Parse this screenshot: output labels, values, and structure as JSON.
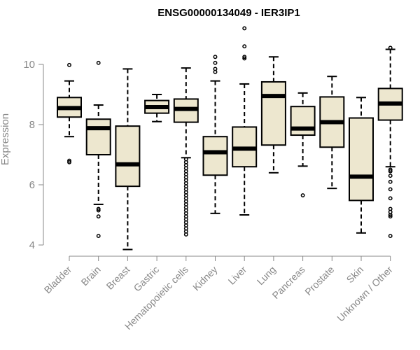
{
  "chart_data": {
    "type": "boxplot",
    "title": "ENSG00000134049 - IER3IP1",
    "xlabel": "",
    "ylabel": "Expression",
    "ylim": [
      3.8,
      11.3
    ],
    "yticks": [
      4,
      6,
      8,
      10
    ],
    "colors": {
      "box_fill": "#ede7cf",
      "box_stroke": "#000000",
      "axis": "#888888"
    },
    "categories": [
      "Bladder",
      "Brain",
      "Breast",
      "Gastric",
      "Hematopoietic cells",
      "Kidney",
      "Liver",
      "Lung",
      "Pancreas",
      "Prostate",
      "Skin",
      "Unknown / Other"
    ],
    "boxes": [
      {
        "label": "Bladder",
        "q1": 8.25,
        "median": 8.55,
        "q3": 8.9,
        "whisker_low": 7.6,
        "whisker_high": 9.45,
        "outliers": [
          6.75,
          6.8,
          9.98
        ]
      },
      {
        "label": "Brain",
        "q1": 7.0,
        "median": 7.88,
        "q3": 8.18,
        "whisker_low": 5.35,
        "whisker_high": 8.65,
        "outliers": [
          5.2,
          5.15,
          4.95,
          4.3,
          10.05
        ]
      },
      {
        "label": "Breast",
        "q1": 5.95,
        "median": 6.68,
        "q3": 7.95,
        "whisker_low": 3.85,
        "whisker_high": 9.85,
        "outliers": []
      },
      {
        "label": "Gastric",
        "q1": 8.38,
        "median": 8.58,
        "q3": 8.8,
        "whisker_low": 8.1,
        "whisker_high": 9.0,
        "outliers": []
      },
      {
        "label": "Hematopoietic cells",
        "q1": 8.08,
        "median": 8.52,
        "q3": 8.85,
        "whisker_low": 6.9,
        "whisker_high": 9.88,
        "outliers": [
          6.85,
          6.75,
          6.65,
          6.55,
          6.45,
          6.35,
          6.25,
          6.15,
          6.05,
          5.95,
          5.85,
          5.75,
          5.65,
          5.55,
          5.45,
          5.35,
          5.25,
          5.15,
          5.05,
          4.95,
          4.85,
          4.75,
          4.65,
          4.55,
          4.45,
          4.35
        ]
      },
      {
        "label": "Kidney",
        "q1": 6.32,
        "median": 7.08,
        "q3": 7.6,
        "whisker_low": 5.05,
        "whisker_high": 9.45,
        "outliers": [
          9.75,
          9.85,
          10.05,
          10.25
        ]
      },
      {
        "label": "Liver",
        "q1": 6.6,
        "median": 7.2,
        "q3": 7.92,
        "whisker_low": 5.0,
        "whisker_high": 9.35,
        "outliers": [
          10.2,
          10.25,
          10.6,
          11.2
        ]
      },
      {
        "label": "Lung",
        "q1": 7.32,
        "median": 8.95,
        "q3": 9.42,
        "whisker_low": 6.4,
        "whisker_high": 10.25,
        "outliers": []
      },
      {
        "label": "Pancreas",
        "q1": 7.65,
        "median": 7.87,
        "q3": 8.6,
        "whisker_low": 6.62,
        "whisker_high": 9.05,
        "outliers": [
          5.65
        ]
      },
      {
        "label": "Prostate",
        "q1": 7.25,
        "median": 8.08,
        "q3": 8.92,
        "whisker_low": 5.88,
        "whisker_high": 9.6,
        "outliers": []
      },
      {
        "label": "Skin",
        "q1": 5.48,
        "median": 6.27,
        "q3": 8.22,
        "whisker_low": 4.4,
        "whisker_high": 8.9,
        "outliers": []
      },
      {
        "label": "Unknown / Other",
        "q1": 8.15,
        "median": 8.7,
        "q3": 9.2,
        "whisker_low": 6.6,
        "whisker_high": 10.5,
        "outliers": [
          10.55,
          6.5,
          6.45,
          6.3,
          6.1,
          5.85,
          5.55,
          5.2,
          5.1,
          5.0,
          4.95,
          4.3
        ]
      }
    ]
  }
}
